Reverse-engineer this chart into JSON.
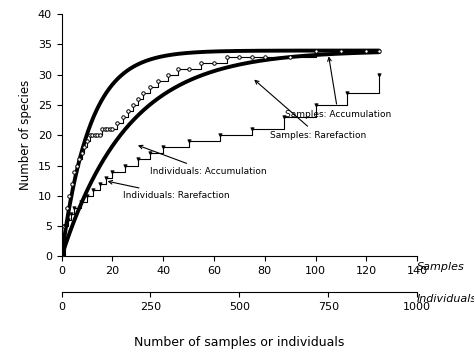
{
  "ylabel": "Number of species",
  "xlabel": "Number of samples or individuals",
  "xlabel_samples": "Samples",
  "xlabel_individuals": "Individuals",
  "ylim": [
    0,
    40
  ],
  "xlim_samples": [
    0,
    140
  ],
  "xlim_individuals": [
    0,
    1000
  ],
  "yticks": [
    0,
    5,
    10,
    15,
    20,
    25,
    30,
    35,
    40
  ],
  "xticks_samples": [
    0,
    20,
    40,
    60,
    80,
    100,
    120,
    140
  ],
  "xticks_individuals": [
    0,
    250,
    500,
    750,
    1000
  ],
  "samples_accum_x": [
    0,
    1,
    2,
    3,
    4,
    5,
    6,
    7,
    8,
    9,
    10,
    11,
    12,
    13,
    14,
    15,
    16,
    17,
    18,
    19,
    20,
    22,
    24,
    26,
    28,
    30,
    32,
    35,
    38,
    42,
    46,
    50,
    55,
    60,
    65,
    70,
    75,
    80,
    90,
    100,
    110,
    120,
    125
  ],
  "samples_accum_y": [
    0,
    5,
    8,
    10,
    12,
    14,
    15,
    16,
    17,
    18,
    19,
    20,
    20,
    20,
    20,
    20,
    21,
    21,
    21,
    21,
    21,
    22,
    23,
    24,
    25,
    26,
    27,
    28,
    29,
    30,
    31,
    31,
    32,
    32,
    33,
    33,
    33,
    33,
    33,
    34,
    34,
    34,
    34
  ],
  "samples_raref_k": 0.09,
  "samples_raref_max": 34,
  "ind_accum_x_raw": [
    0,
    10,
    20,
    30,
    40,
    60,
    80,
    100,
    120,
    140,
    160,
    200,
    240,
    280,
    320,
    400,
    500,
    600,
    700,
    800,
    900,
    1000
  ],
  "ind_accum_y": [
    0,
    5,
    6,
    7,
    8,
    9,
    10,
    11,
    12,
    13,
    14,
    15,
    16,
    17,
    18,
    19,
    20,
    21,
    23,
    25,
    27,
    30
  ],
  "ind_raref_k": 0.0048,
  "ind_raref_max": 34,
  "background_color": "#ffffff"
}
